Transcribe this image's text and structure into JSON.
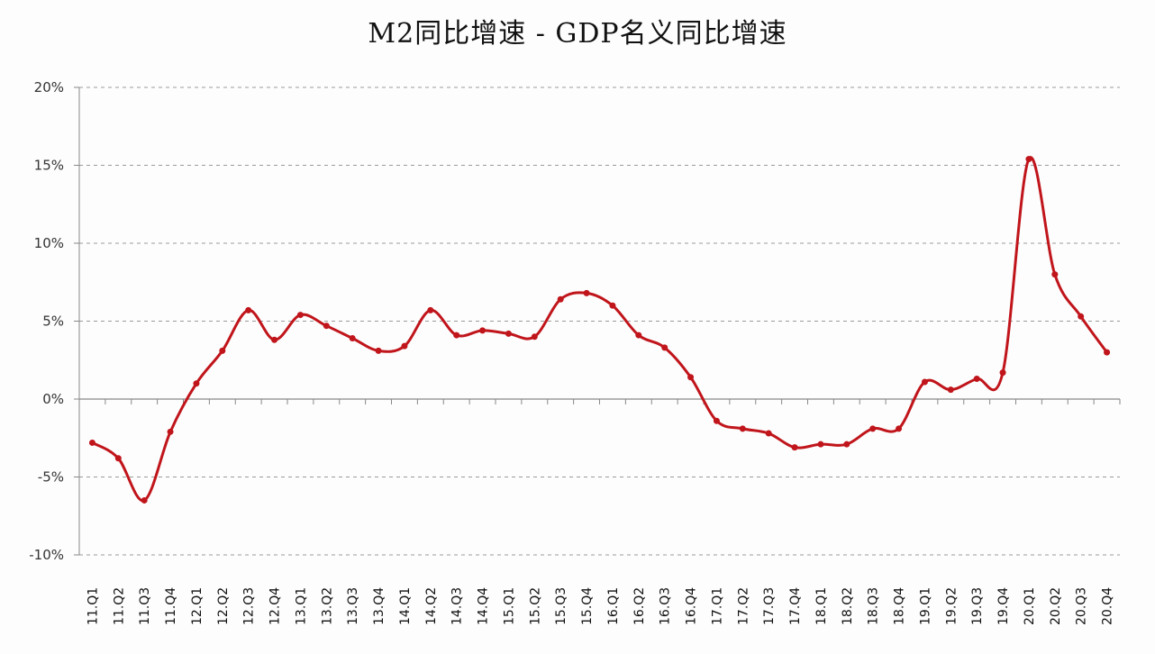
{
  "chart_data": {
    "type": "line",
    "title": "M2同比增速 - GDP名义同比增速",
    "xlabel": "",
    "ylabel": "",
    "ylim": [
      -10,
      20
    ],
    "yticks": [
      20,
      15,
      10,
      5,
      0,
      -5,
      -10
    ],
    "ytick_labels": [
      "20%",
      "15%",
      "10%",
      "5%",
      "0%",
      "-5%",
      "-10%"
    ],
    "grid": "horizontal dashed",
    "legend": "none",
    "line_color": "#c0151b",
    "categories": [
      "11.Q1",
      "11.Q2",
      "11.Q3",
      "11.Q4",
      "12.Q1",
      "12.Q2",
      "12.Q3",
      "12.Q4",
      "13.Q1",
      "13.Q2",
      "13.Q3",
      "13.Q4",
      "14.Q1",
      "14.Q2",
      "14.Q3",
      "14.Q4",
      "15.Q1",
      "15.Q2",
      "15.Q3",
      "15.Q4",
      "16.Q1",
      "16.Q2",
      "16.Q3",
      "16.Q4",
      "17.Q1",
      "17.Q2",
      "17.Q3",
      "17.Q4",
      "18.Q1",
      "18.Q2",
      "18.Q3",
      "18.Q4",
      "19.Q1",
      "19.Q2",
      "19.Q3",
      "19.Q4",
      "20.Q1",
      "20.Q2",
      "20.Q3",
      "20.Q4"
    ],
    "series": [
      {
        "name": "M2同比增速 - GDP名义同比增速",
        "unit": "%",
        "values": [
          -2.8,
          -3.8,
          -6.5,
          -2.1,
          1.0,
          3.1,
          5.7,
          3.8,
          5.4,
          4.7,
          3.9,
          3.1,
          3.4,
          5.7,
          4.1,
          4.4,
          4.2,
          4.0,
          6.4,
          6.8,
          6.0,
          4.1,
          3.3,
          1.4,
          -1.4,
          -1.9,
          -2.2,
          -3.1,
          -2.9,
          -2.9,
          -1.9,
          -1.9,
          1.1,
          0.6,
          1.3,
          1.7,
          15.4,
          8.0,
          5.3,
          3.0
        ]
      }
    ]
  }
}
